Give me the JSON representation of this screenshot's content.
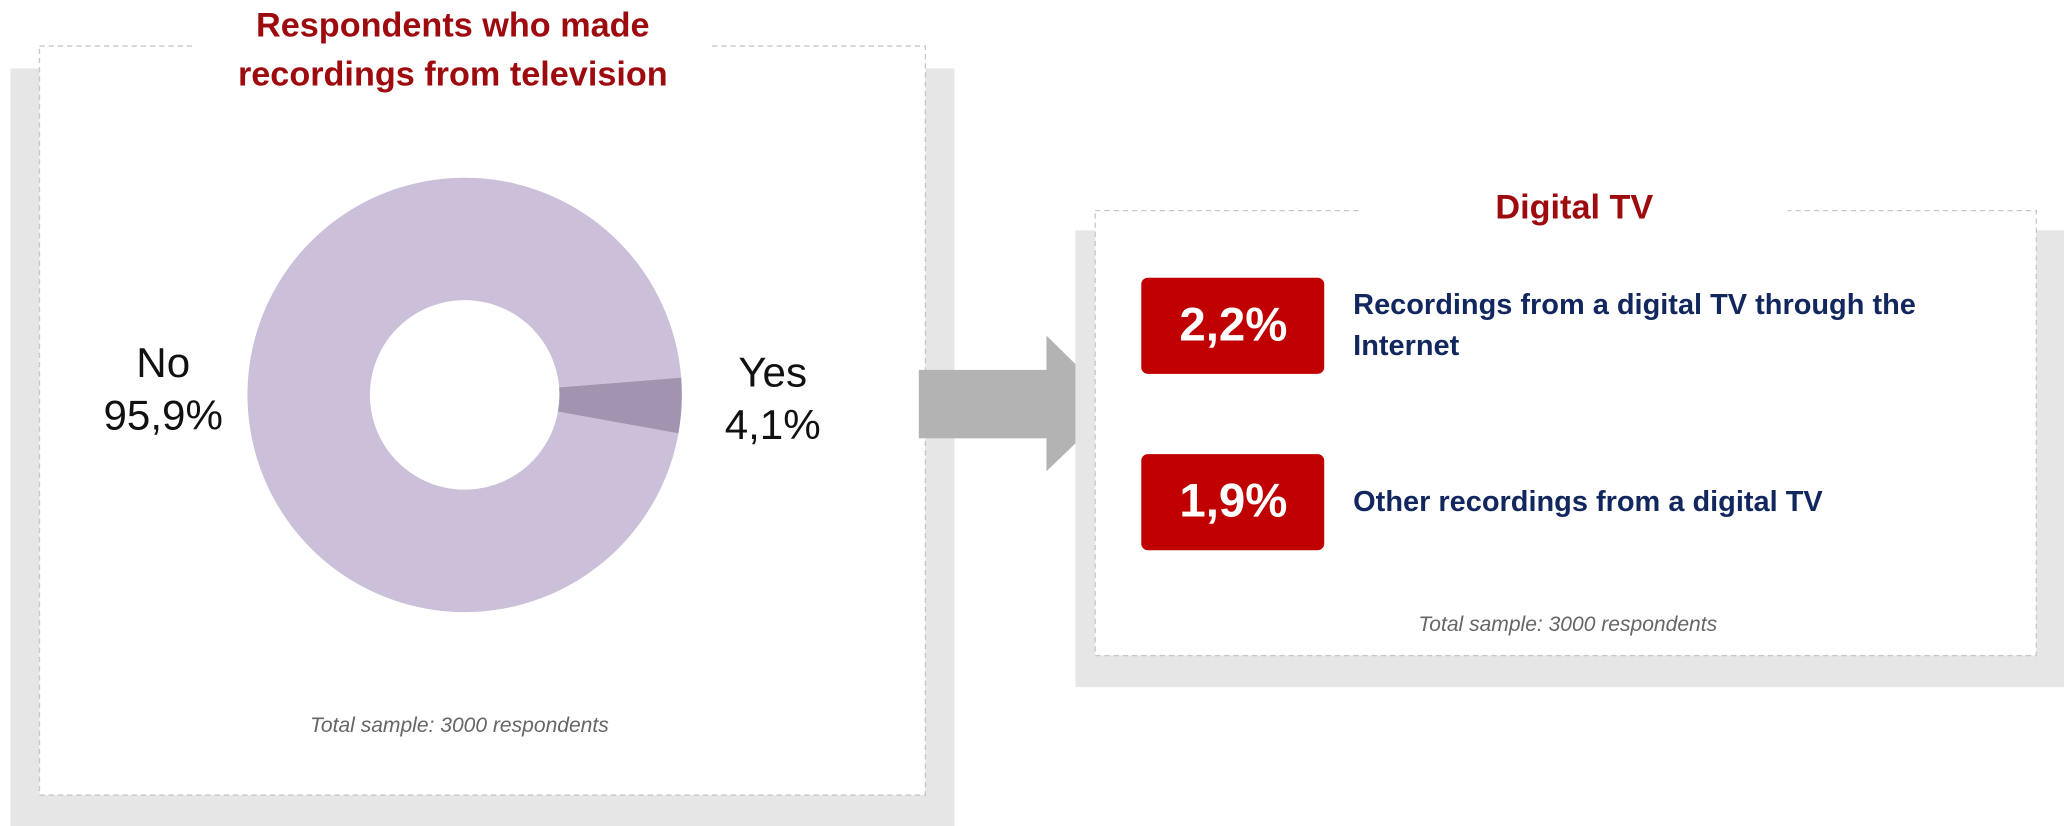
{
  "chart_data": {
    "type": "donut",
    "title": "Respondents who made recordings from television",
    "categories": [
      "No",
      "Yes"
    ],
    "values": [
      95.9,
      4.1
    ],
    "value_labels": [
      "95,9%",
      "4,1%"
    ],
    "colors": [
      "#cbbfd9",
      "#a293b0"
    ],
    "note": "Total sample: 3000 respondents"
  },
  "digital_tv": {
    "title": "Digital TV",
    "items": [
      {
        "value_label": "2,2%",
        "text": "Recordings from a digital TV through the Internet"
      },
      {
        "value_label": "1,9%",
        "text": "Other recordings from a digital TV"
      }
    ],
    "note": "Total sample: 3000 respondents"
  }
}
